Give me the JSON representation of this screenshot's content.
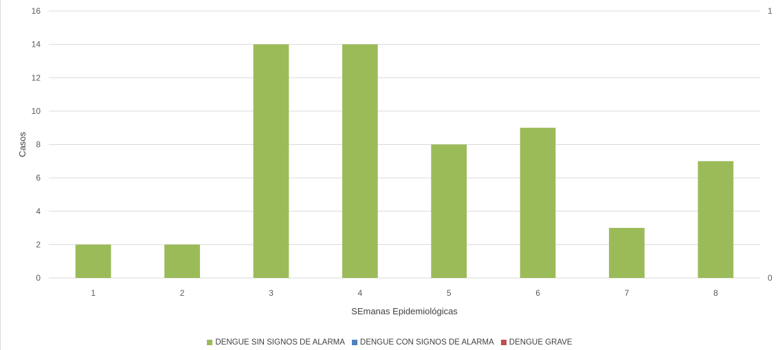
{
  "chart_data": {
    "type": "bar",
    "categories": [
      "1",
      "2",
      "3",
      "4",
      "5",
      "6",
      "7",
      "8"
    ],
    "series": [
      {
        "name": "DENGUE SIN SIGNOS DE ALARMA",
        "values": [
          2,
          2,
          14,
          14,
          8,
          9,
          3,
          7
        ],
        "color": "#9bbb59"
      },
      {
        "name": "DENGUE CON SIGNOS DE ALARMA",
        "values": [
          0,
          0,
          0,
          0,
          0,
          0,
          0,
          0
        ],
        "color": "#4f81bd"
      },
      {
        "name": "DENGUE GRAVE",
        "values": [
          0,
          0,
          0,
          0,
          0,
          0,
          0,
          0
        ],
        "color": "#c0504d"
      }
    ],
    "xlabel": "SEmanas Epidemiológicas",
    "ylabel": "Casos",
    "ylim": [
      0,
      16
    ],
    "yticks": [
      "0",
      "2",
      "4",
      "6",
      "8",
      "10",
      "12",
      "14",
      "16"
    ],
    "y2lim": [
      0,
      1
    ],
    "y2ticks": [
      "0",
      "1"
    ],
    "grid": true,
    "legend_position": "bottom"
  }
}
